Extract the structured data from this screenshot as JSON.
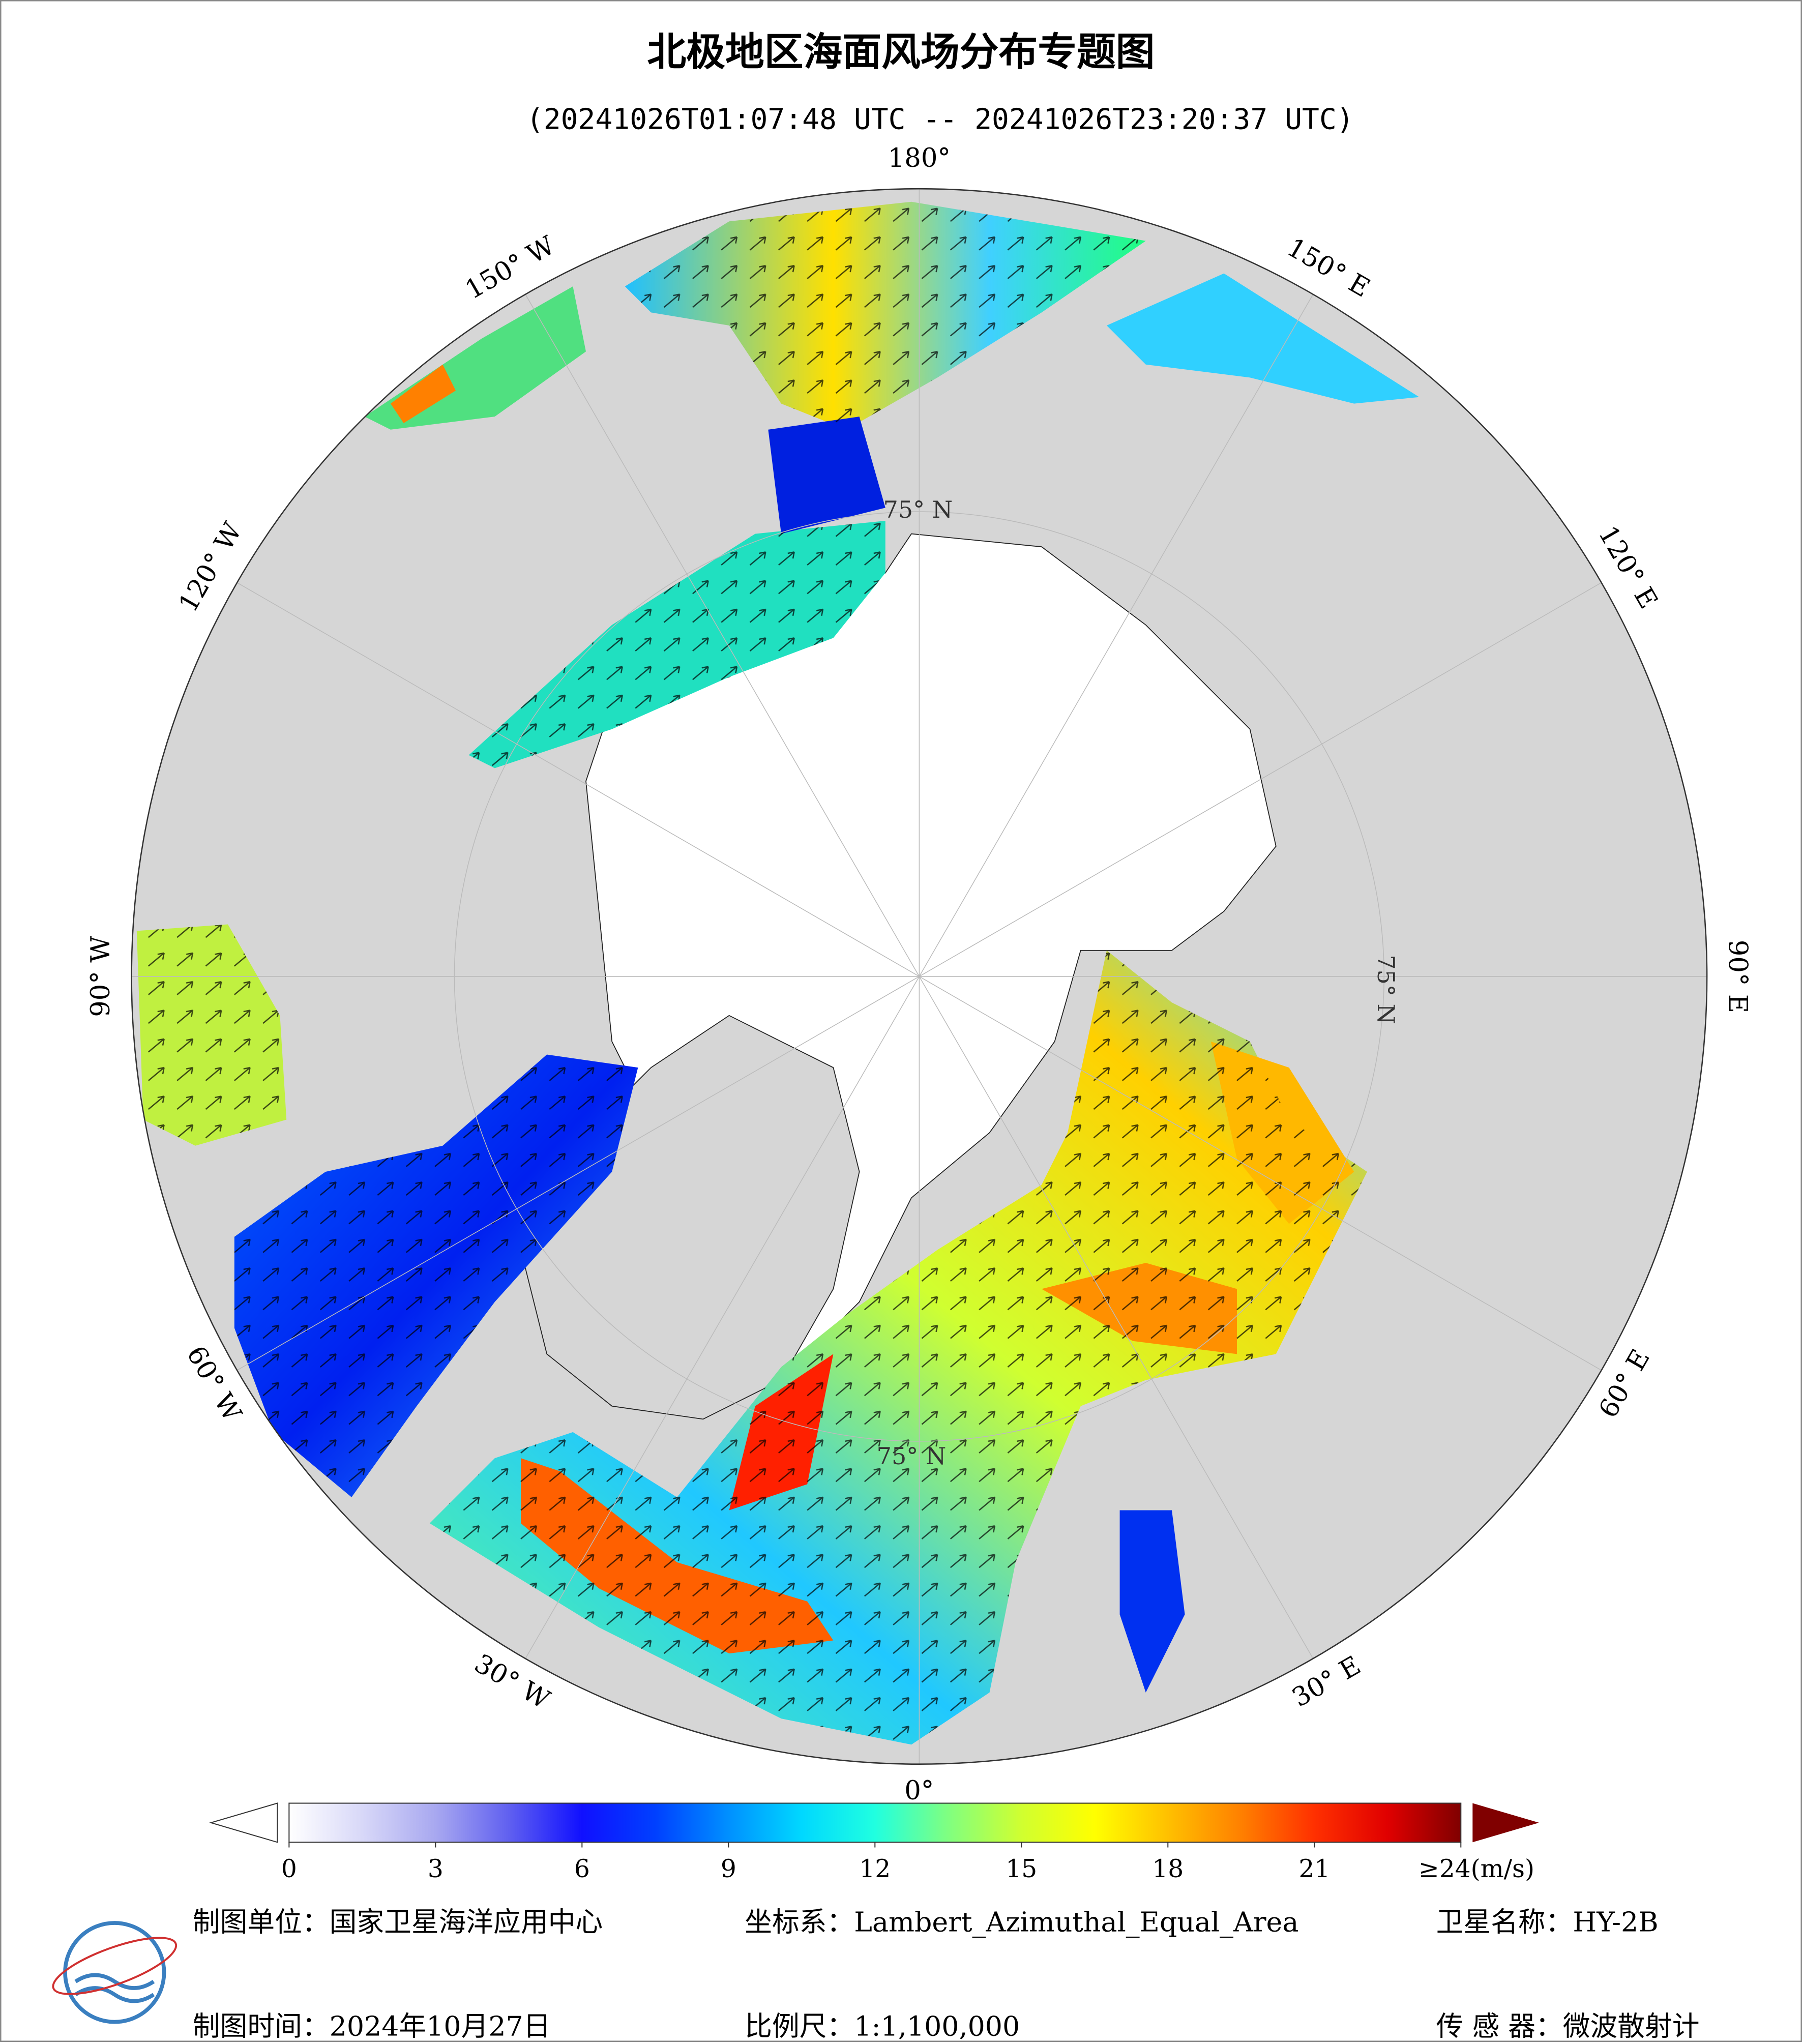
{
  "title": "北极地区海面风场分布专题图",
  "subtitle": "(20241026T01:07:48 UTC -- 20241026T23:20:37 UTC)",
  "map": {
    "lon_labels": [
      "180°",
      "150° E",
      "120° E",
      "90° E",
      "60° E",
      "30° E",
      "0°",
      "30° W",
      "60° W",
      "90° W",
      "120° W",
      "150° W"
    ],
    "lat_labels": [
      "75° N",
      "75° N",
      "75° N"
    ]
  },
  "colorbar": {
    "range": [
      0,
      24
    ],
    "ticks": [
      0,
      3,
      6,
      9,
      12,
      15,
      18,
      21,
      {
        "value": 24,
        "label": "≥24(m/s)"
      }
    ],
    "colors": [
      "#ffffff",
      "#d8d8f8",
      "#a8a8f0",
      "#6060f0",
      "#1010ff",
      "#0040ff",
      "#0090ff",
      "#00d8ff",
      "#20ffe0",
      "#80ff80",
      "#d0ff30",
      "#ffff00",
      "#ffc000",
      "#ff8000",
      "#ff3000",
      "#e00000",
      "#800000"
    ]
  },
  "footer": {
    "unit": "制图单位：国家卫星海洋应用中心",
    "crs": "坐标系：Lambert_Azimuthal_Equal_Area",
    "satellite": "卫星名称：HY-2B",
    "date": "制图时间：2024年10月27日",
    "scale": "比例尺：1:1,100,000",
    "sensor": "传 感 器：微波散射计"
  }
}
